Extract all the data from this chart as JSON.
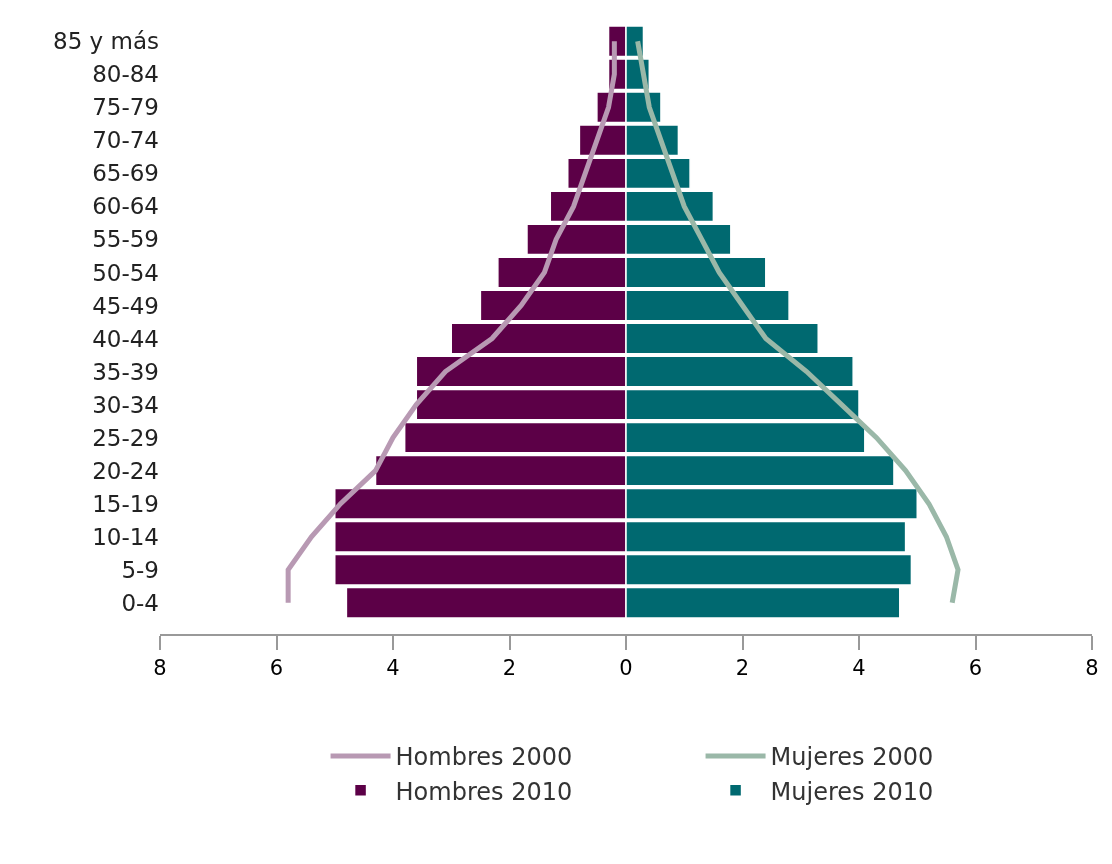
{
  "chart_data": {
    "type": "bar",
    "orientation": "horizontal",
    "categories": [
      "85 y más",
      "80-84",
      "75-79",
      "70-74",
      "65-69",
      "60-64",
      "55-59",
      "50-54",
      "45-49",
      "40-44",
      "35-39",
      "30-34",
      "25-29",
      "20-24",
      "15-19",
      "10-14",
      "5-9",
      "0-4"
    ],
    "series": [
      {
        "name": "Hombres 2000",
        "type": "line",
        "color": "#b899b3",
        "values": [
          -0.2,
          -0.2,
          -0.3,
          -0.5,
          -0.7,
          -0.9,
          -1.2,
          -1.4,
          -1.8,
          -2.3,
          -3.1,
          -3.6,
          -4.0,
          -4.3,
          -4.9,
          -5.4,
          -5.8,
          -5.8
        ]
      },
      {
        "name": "Mujeres 2000",
        "type": "line",
        "color": "#9ab8a8",
        "values": [
          0.2,
          0.3,
          0.4,
          0.6,
          0.8,
          1.0,
          1.3,
          1.6,
          2.0,
          2.4,
          3.1,
          3.7,
          4.3,
          4.8,
          5.2,
          5.5,
          5.7,
          5.6
        ]
      },
      {
        "name": "Hombres 2010",
        "color": "#5c0047",
        "values": [
          -0.3,
          -0.3,
          -0.5,
          -0.8,
          -1.0,
          -1.3,
          -1.7,
          -2.2,
          -2.5,
          -3.0,
          -3.6,
          -3.6,
          -3.8,
          -4.3,
          -5.0,
          -5.0,
          -5.0,
          -4.8
        ]
      },
      {
        "name": "Mujeres 2010",
        "color": "#006970",
        "values": [
          0.3,
          0.4,
          0.6,
          0.9,
          1.1,
          1.5,
          1.8,
          2.4,
          2.8,
          3.3,
          3.9,
          4.0,
          4.1,
          4.6,
          5.0,
          4.8,
          4.9,
          4.7
        ]
      }
    ],
    "xlim": [
      -8,
      8
    ],
    "xticks": [
      {
        "value": -8,
        "label": "8"
      },
      {
        "value": -6,
        "label": "6"
      },
      {
        "value": -4,
        "label": "4"
      },
      {
        "value": -2,
        "label": "2"
      },
      0,
      2,
      4,
      6,
      8
    ],
    "stacked": true,
    "grid": false,
    "legend": "bottom",
    "line_style": "solid",
    "marker": "none"
  }
}
